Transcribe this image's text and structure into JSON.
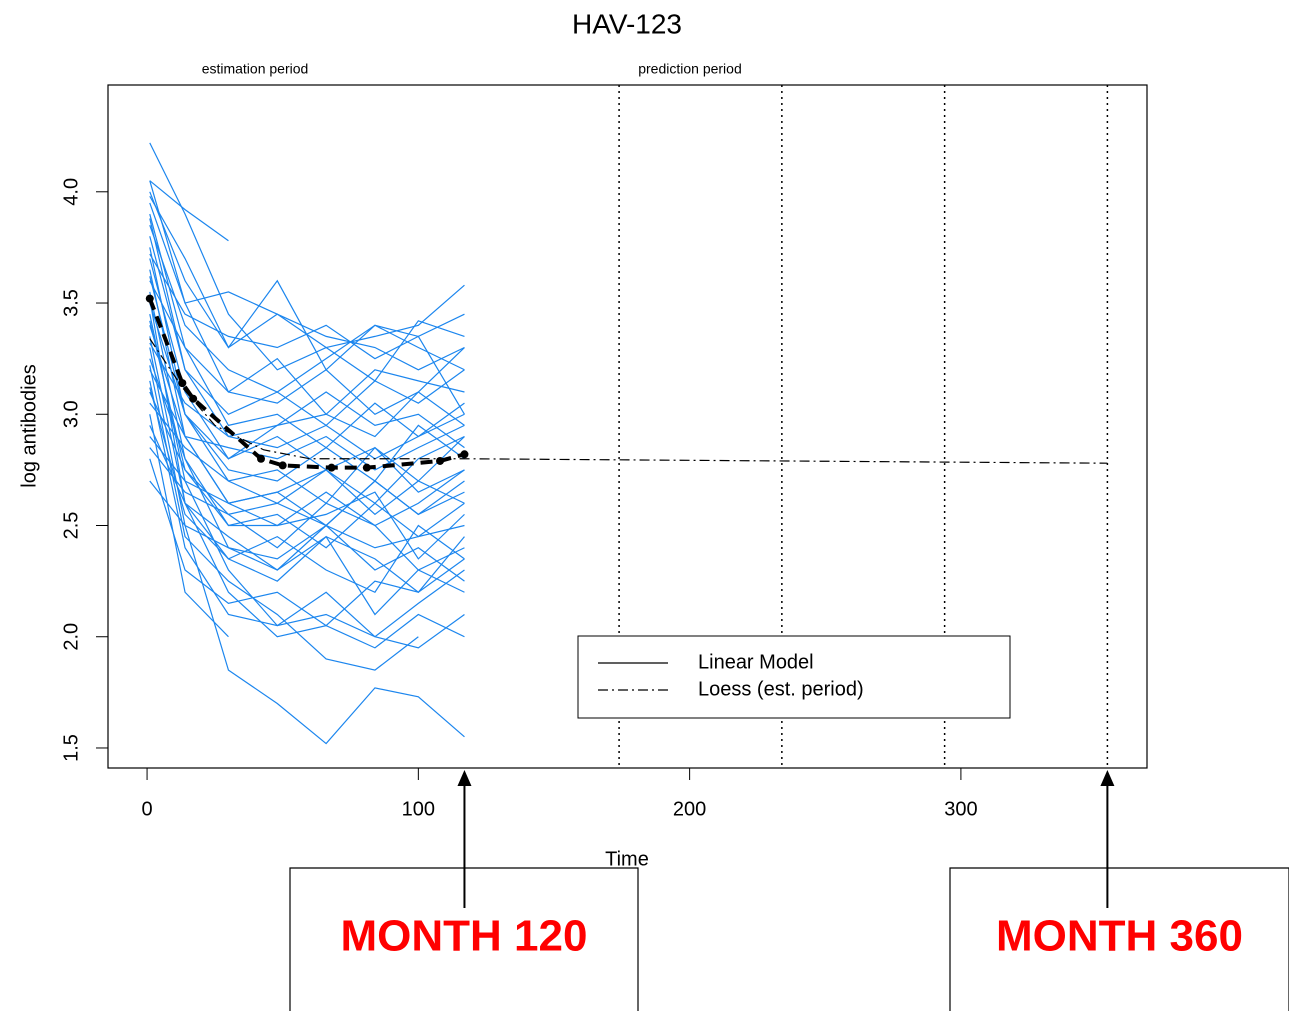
{
  "chart_data": {
    "type": "line",
    "title": "HAV-123",
    "xlabel": "Time",
    "ylabel": "log antibodies",
    "period_labels": [
      "estimation period",
      "prediction period"
    ],
    "xlim": [
      -14.4,
      368.6
    ],
    "ylim": [
      1.41,
      4.48
    ],
    "xticks": [
      0,
      100,
      200,
      300
    ],
    "yticks": [
      1.5,
      {
        "value": 2,
        "label": "2.0"
      },
      2.5,
      {
        "value": 3,
        "label": "3.0"
      },
      3.5,
      {
        "value": 4,
        "label": "4.0"
      }
    ],
    "vlines": [
      174,
      234,
      294,
      354
    ],
    "subjects": {
      "color": "#1c86ee",
      "x": [
        1,
        14,
        30,
        48,
        66,
        84,
        100,
        117
      ],
      "series": [
        {
          "values": [
            4.22,
            3.9,
            3.45,
            3.2,
            3.3,
            3.35,
            3.4,
            3.58
          ]
        },
        {
          "values": [
            4.05,
            3.92,
            3.78,
            null,
            null,
            null,
            null,
            null
          ]
        },
        {
          "values": [
            4.0,
            3.6,
            3.3,
            3.45,
            3.3,
            3.15,
            3.42,
            3.35
          ]
        },
        {
          "values": [
            3.95,
            3.5,
            3.1,
            3.05,
            3.2,
            3.0,
            3.1,
            3.3
          ]
        },
        {
          "values": [
            3.9,
            3.3,
            2.95,
            3.0,
            2.85,
            3.05,
            2.9,
            3.05
          ]
        },
        {
          "values": [
            3.85,
            3.4,
            3.2,
            3.1,
            3.25,
            3.4,
            3.3,
            3.2
          ]
        },
        {
          "values": [
            3.8,
            3.2,
            2.9,
            2.85,
            2.95,
            2.8,
            2.9,
            3.0
          ]
        },
        {
          "values": [
            3.75,
            3.0,
            2.7,
            2.6,
            2.75,
            2.85,
            2.7,
            2.9
          ]
        },
        {
          "values": [
            3.7,
            3.1,
            2.8,
            2.95,
            3.1,
            2.95,
            3.0,
            2.85
          ]
        },
        {
          "values": [
            3.65,
            2.9,
            2.6,
            2.5,
            2.65,
            2.5,
            2.6,
            2.75
          ]
        },
        {
          "values": [
            3.6,
            3.3,
            3.1,
            3.25,
            3.0,
            3.2,
            3.15,
            3.1
          ]
        },
        {
          "values": [
            3.55,
            2.8,
            2.4,
            2.3,
            2.5,
            2.4,
            2.45,
            2.6
          ]
        },
        {
          "values": [
            3.5,
            3.0,
            2.75,
            2.7,
            2.85,
            2.7,
            2.95,
            2.8
          ]
        },
        {
          "values": [
            3.45,
            2.7,
            2.3,
            2.05,
            2.1,
            2.0,
            2.15,
            2.3
          ]
        },
        {
          "values": [
            3.4,
            2.9,
            2.6,
            2.65,
            2.5,
            2.7,
            2.55,
            2.7
          ]
        },
        {
          "values": [
            3.35,
            2.6,
            2.2,
            2.0,
            2.05,
            1.95,
            2.1,
            2.0
          ]
        },
        {
          "values": [
            3.3,
            2.5,
            1.85,
            1.7,
            1.52,
            1.77,
            1.73,
            1.55
          ]
        },
        {
          "values": [
            3.25,
            2.8,
            2.5,
            2.55,
            2.4,
            2.6,
            2.45,
            2.5
          ]
        },
        {
          "values": [
            3.2,
            2.9,
            2.85,
            2.8,
            2.9,
            2.75,
            2.85,
            2.95
          ]
        },
        {
          "values": [
            3.15,
            2.4,
            2.1,
            2.05,
            2.2,
            2.0,
            1.95,
            2.1
          ]
        },
        {
          "values": [
            3.1,
            2.75,
            2.55,
            2.4,
            2.6,
            2.5,
            2.3,
            2.4
          ]
        },
        {
          "values": [
            3.05,
            2.85,
            2.7,
            2.75,
            2.6,
            2.85,
            2.65,
            2.75
          ]
        },
        {
          "values": [
            3.0,
            2.2,
            2.0,
            null,
            null,
            null,
            null,
            null
          ]
        },
        {
          "values": [
            2.95,
            2.6,
            2.45,
            2.3,
            2.45,
            2.35,
            2.2,
            2.45
          ]
        },
        {
          "values": [
            2.9,
            2.7,
            2.6,
            2.65,
            2.75,
            2.55,
            2.7,
            2.6
          ]
        },
        {
          "values": [
            2.8,
            2.3,
            2.15,
            2.2,
            2.05,
            2.25,
            2.2,
            2.35
          ]
        },
        {
          "values": [
            2.7,
            2.5,
            2.4,
            2.35,
            2.5,
            2.3,
            2.4,
            2.25
          ]
        },
        {
          "values": [
            4.05,
            3.5,
            3.55,
            3.45,
            3.35,
            3.3,
            3.2,
            3.3
          ]
        },
        {
          "values": [
            3.98,
            3.7,
            3.3,
            3.6,
            3.2,
            3.4,
            3.35,
            3.45
          ]
        },
        {
          "values": [
            3.88,
            3.2,
            3.0,
            3.1,
            2.95,
            3.15,
            3.05,
            3.2
          ]
        },
        {
          "values": [
            3.72,
            3.45,
            3.35,
            3.3,
            3.4,
            3.25,
            3.35,
            3.0
          ]
        },
        {
          "values": [
            3.62,
            3.0,
            2.8,
            2.9,
            2.75,
            2.6,
            2.8,
            2.9
          ]
        },
        {
          "values": [
            3.52,
            2.6,
            2.35,
            2.45,
            2.3,
            2.2,
            2.5,
            2.35
          ]
        },
        {
          "values": [
            3.42,
            2.75,
            2.5,
            2.5,
            2.55,
            2.65,
            2.35,
            2.55
          ]
        },
        {
          "values": [
            3.32,
            3.05,
            2.9,
            2.95,
            3.0,
            2.9,
            3.1,
            2.95
          ]
        },
        {
          "values": [
            3.22,
            2.45,
            2.25,
            2.1,
            1.9,
            1.85,
            2.0,
            null
          ]
        },
        {
          "values": [
            3.12,
            2.55,
            2.35,
            2.25,
            2.45,
            2.1,
            2.3,
            2.2
          ]
        },
        {
          "values": [
            2.85,
            2.65,
            2.55,
            2.6,
            2.5,
            2.7,
            2.55,
            2.65
          ]
        }
      ]
    },
    "series": [
      {
        "linestyle": "dashdot",
        "color": "#000000",
        "x": [
          1,
          13,
          25,
          43,
          60,
          117,
          354
        ],
        "values": [
          3.34,
          3.12,
          2.95,
          2.84,
          2.8,
          2.8,
          2.78
        ]
      },
      {
        "linestyle": "dashed",
        "markers": true,
        "color": "#000000",
        "x": [
          1,
          13,
          17,
          42,
          50,
          68,
          81,
          108,
          117
        ],
        "values": [
          3.52,
          3.14,
          3.07,
          2.8,
          2.77,
          2.76,
          2.76,
          2.79,
          2.82
        ]
      }
    ],
    "legend": [
      {
        "label": "Linear Model",
        "linestyle": "solid"
      },
      {
        "label": "Loess (est. period)",
        "linestyle": "dashdot"
      }
    ],
    "arrows": [
      {
        "x": 117,
        "label": "MONTH 120",
        "color": "#ff0000"
      },
      {
        "x": 354,
        "label": "MONTH 360",
        "color": "#ff0000"
      }
    ]
  }
}
